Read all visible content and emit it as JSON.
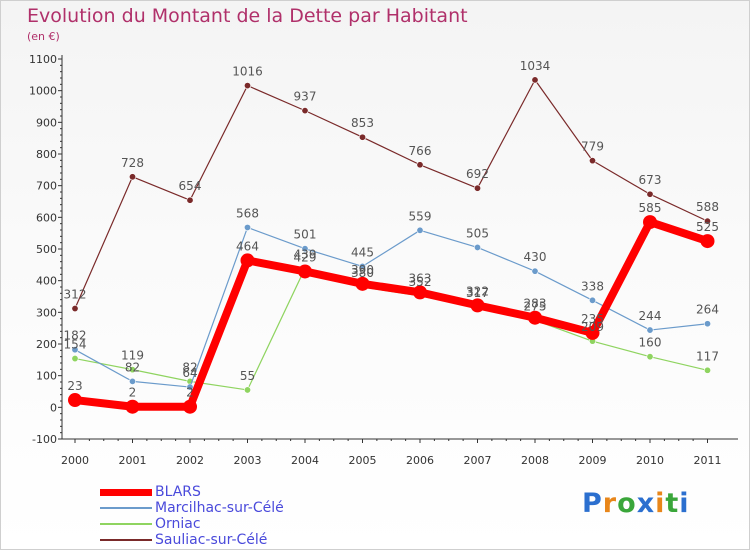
{
  "chart_data": {
    "type": "line",
    "title": "Evolution du Montant de la Dette par Habitant",
    "subtitle": "(en €)",
    "xlabel": "",
    "ylabel": "",
    "ylim": [
      -100,
      1100
    ],
    "yticks": [
      -100,
      0,
      100,
      200,
      300,
      400,
      500,
      600,
      700,
      800,
      900,
      1000,
      1100
    ],
    "grid": false,
    "legend_position": "bottom-left",
    "categories": [
      "2000",
      "2001",
      "2002",
      "2003",
      "2004",
      "2005",
      "2006",
      "2007",
      "2008",
      "2009",
      "2010",
      "2011"
    ],
    "series": [
      {
        "name": "BLARS",
        "color": "#ff0000",
        "values": [
          23,
          2,
          2,
          464,
          429,
          390,
          363,
          322,
          283,
          235,
          585,
          525
        ]
      },
      {
        "name": "Marcilhac-sur-Célé",
        "color": "#6b9bcb",
        "values": [
          182,
          82,
          64,
          568,
          501,
          445,
          559,
          505,
          430,
          338,
          244,
          264
        ]
      },
      {
        "name": "Orniac",
        "color": "#8fd460",
        "values": [
          154,
          119,
          82,
          55,
          439,
          380,
          352,
          317,
          275,
          209,
          160,
          117
        ]
      },
      {
        "name": "Sauliac-sur-Célé",
        "color": "#7a2a2a",
        "values": [
          312,
          728,
          654,
          1016,
          937,
          853,
          766,
          692,
          1034,
          779,
          673,
          588
        ]
      }
    ]
  },
  "logo": {
    "letters": [
      "P",
      "r",
      "o",
      "x",
      "i",
      "t",
      "i"
    ],
    "colors": [
      "#2b6fcf",
      "#e8861a",
      "#3aa63a",
      "#2b6fcf",
      "#e8861a",
      "#3aa63a",
      "#2b6fcf"
    ]
  }
}
